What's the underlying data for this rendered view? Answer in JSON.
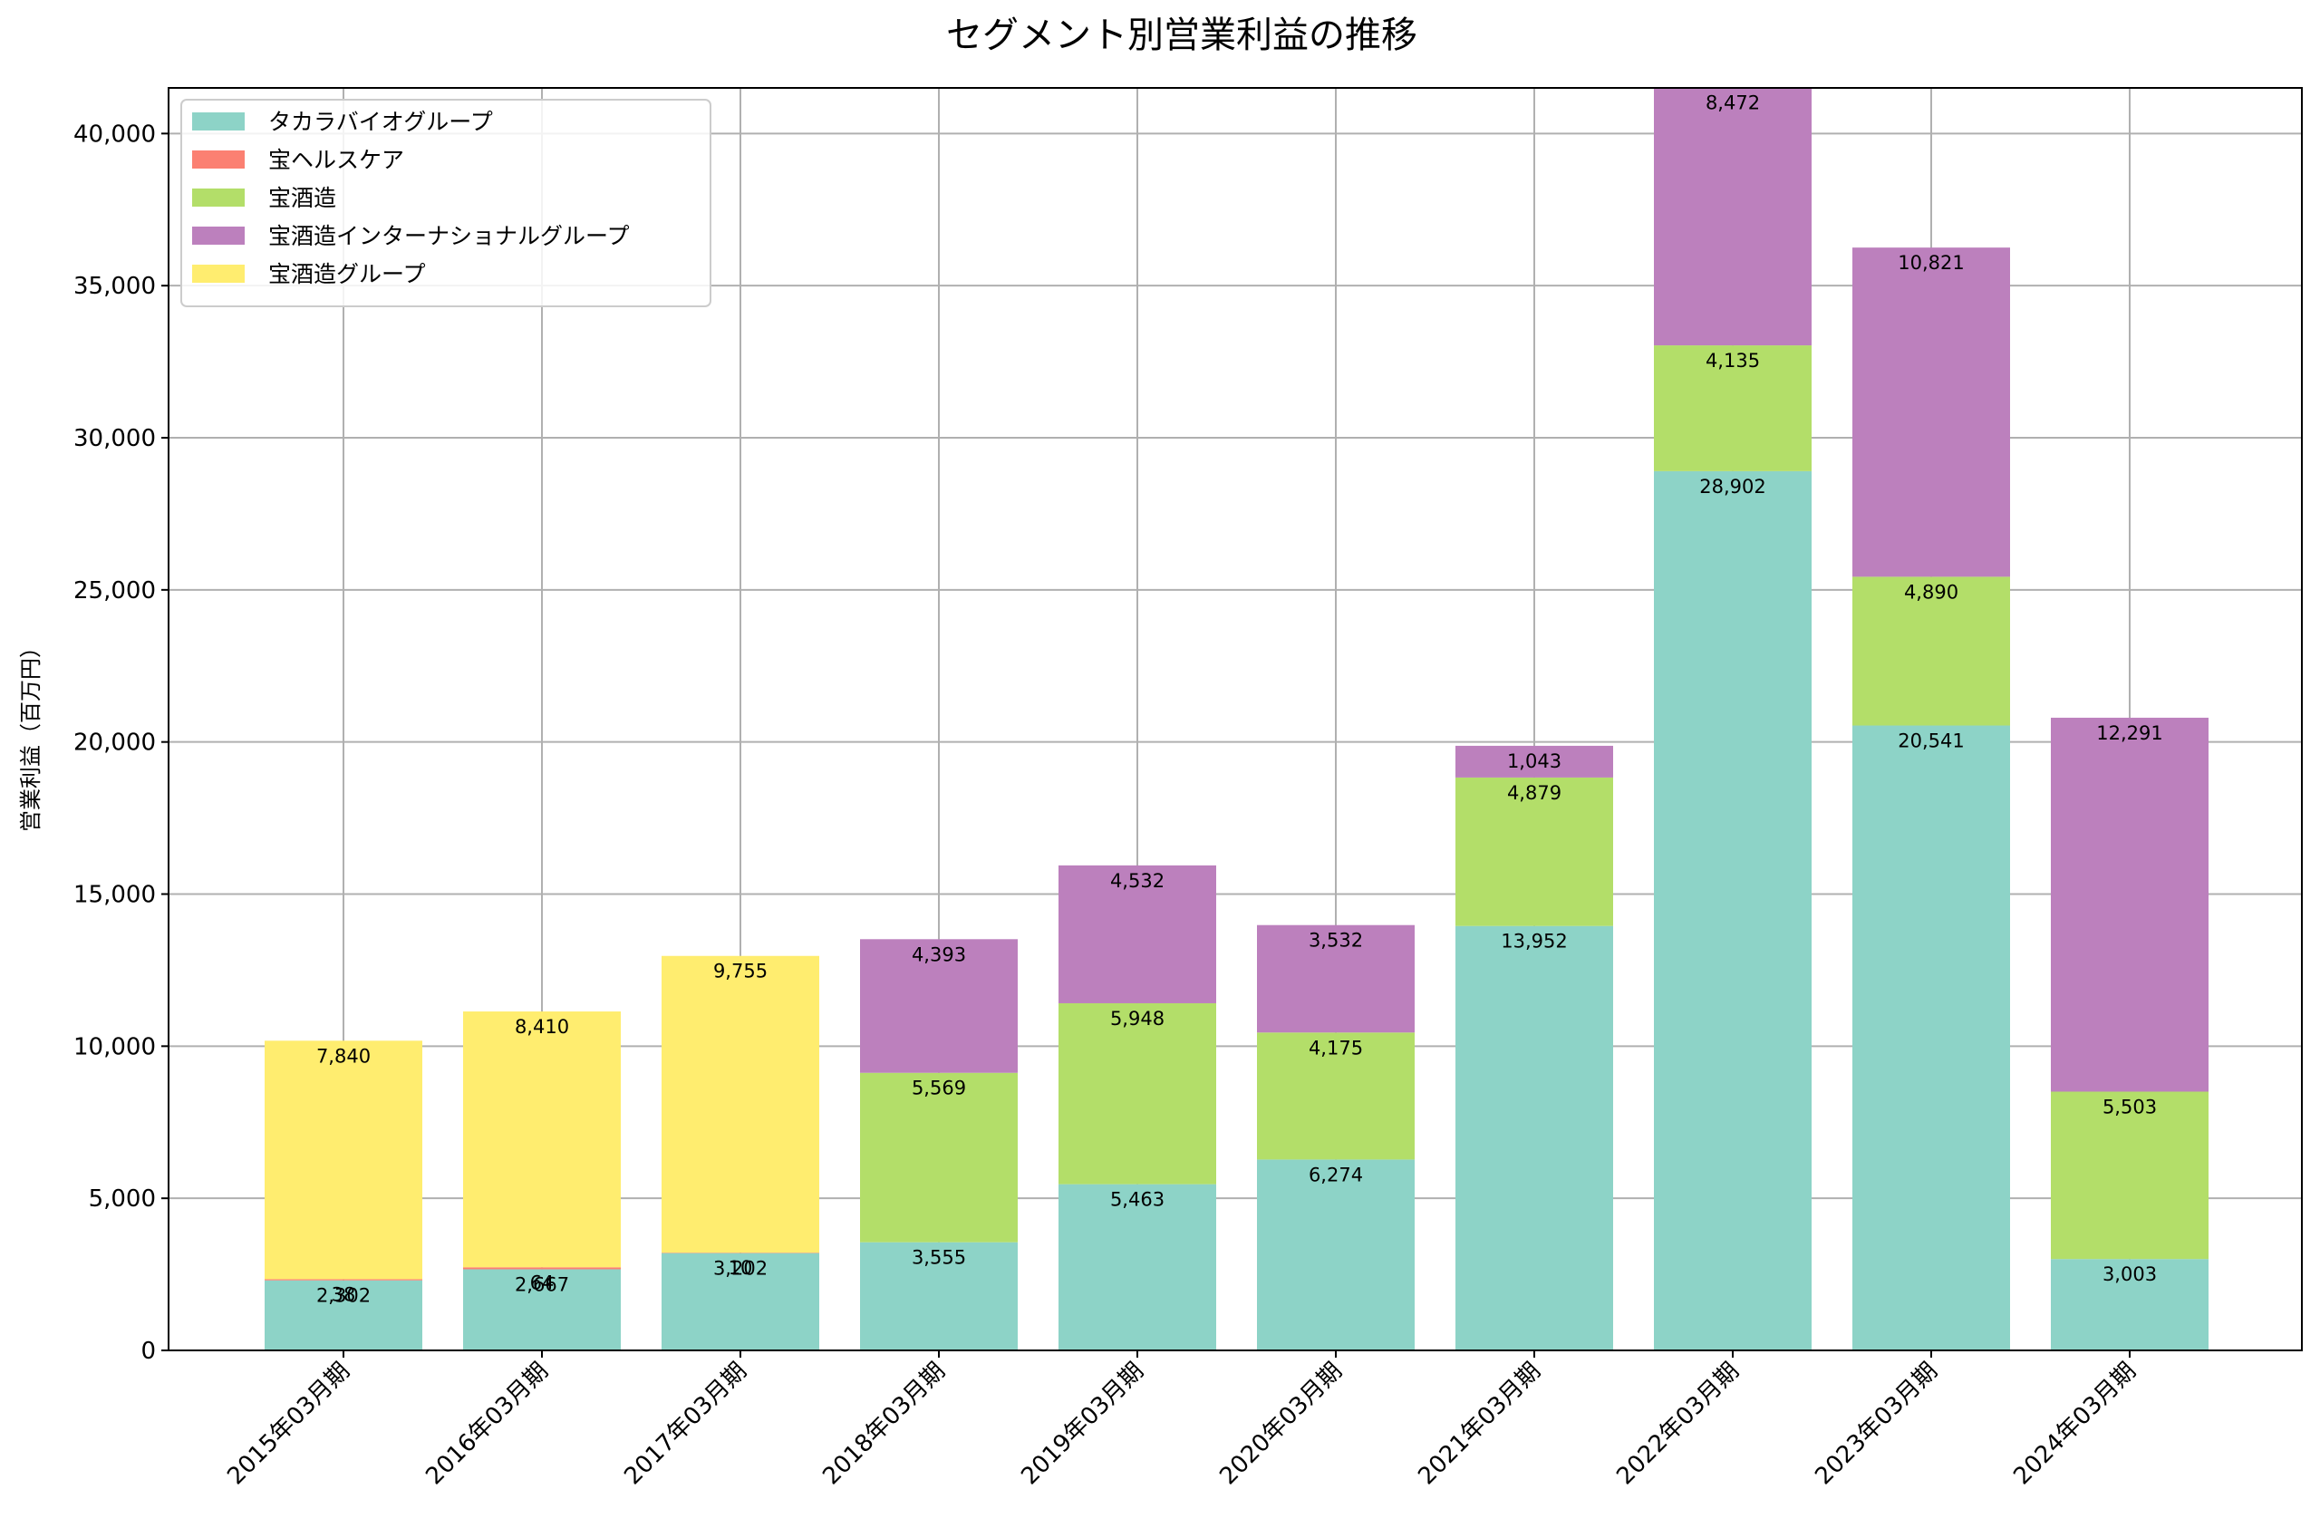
{
  "chart_data": {
    "type": "bar",
    "stacked": true,
    "title": "セグメント別営業利益の推移",
    "xlabel": "",
    "ylabel": "営業利益（百万円）",
    "ylim": [
      0,
      41500
    ],
    "yticks": [
      0,
      5000,
      10000,
      15000,
      20000,
      25000,
      30000,
      35000,
      40000
    ],
    "ytick_labels": [
      "0",
      "5,000",
      "10,000",
      "15,000",
      "20,000",
      "25,000",
      "30,000",
      "35,000",
      "40,000"
    ],
    "grid": true,
    "legend_position": "top-left",
    "categories": [
      "2015年03月期",
      "2016年03月期",
      "2017年03月期",
      "2018年03月期",
      "2019年03月期",
      "2020年03月期",
      "2021年03月期",
      "2022年03月期",
      "2023年03月期",
      "2024年03月期"
    ],
    "series": [
      {
        "name": "タカラバイオグループ",
        "color": "#8dd3c7",
        "values": [
          2302,
          2667,
          3202,
          3555,
          5463,
          6274,
          13952,
          28902,
          20541,
          3003
        ],
        "labels": [
          "2,302",
          "2,667",
          "3,202",
          "3,555",
          "5,463",
          "6,274",
          "13,952",
          "28,902",
          "20,541",
          "3,003"
        ]
      },
      {
        "name": "宝ヘルスケア",
        "color": "#fb8072",
        "values": [
          38,
          64,
          10,
          null,
          null,
          null,
          null,
          null,
          null,
          null
        ],
        "labels": [
          "38",
          "64",
          "10",
          null,
          null,
          null,
          null,
          null,
          null,
          null
        ]
      },
      {
        "name": "宝酒造",
        "color": "#b3de69",
        "values": [
          null,
          null,
          null,
          5569,
          5948,
          4175,
          4879,
          4135,
          4890,
          5503
        ],
        "labels": [
          null,
          null,
          null,
          "5,569",
          "5,948",
          "4,175",
          "4,879",
          "4,135",
          "4,890",
          "5,503"
        ]
      },
      {
        "name": "宝酒造インターナショナルグループ",
        "color": "#bc80bd",
        "values": [
          null,
          null,
          null,
          4393,
          4532,
          3532,
          1043,
          8472,
          10821,
          12291
        ],
        "labels": [
          null,
          null,
          null,
          "4,393",
          "4,532",
          "3,532",
          "1,043",
          "8,472",
          "10,821",
          "12,291"
        ]
      },
      {
        "name": "宝酒造グループ",
        "color": "#ffed6f",
        "values": [
          7840,
          8410,
          9755,
          null,
          null,
          null,
          null,
          null,
          null,
          null
        ],
        "labels": [
          "7,840",
          "8,410",
          "9,755",
          null,
          null,
          null,
          null,
          null,
          null,
          null
        ]
      }
    ]
  }
}
